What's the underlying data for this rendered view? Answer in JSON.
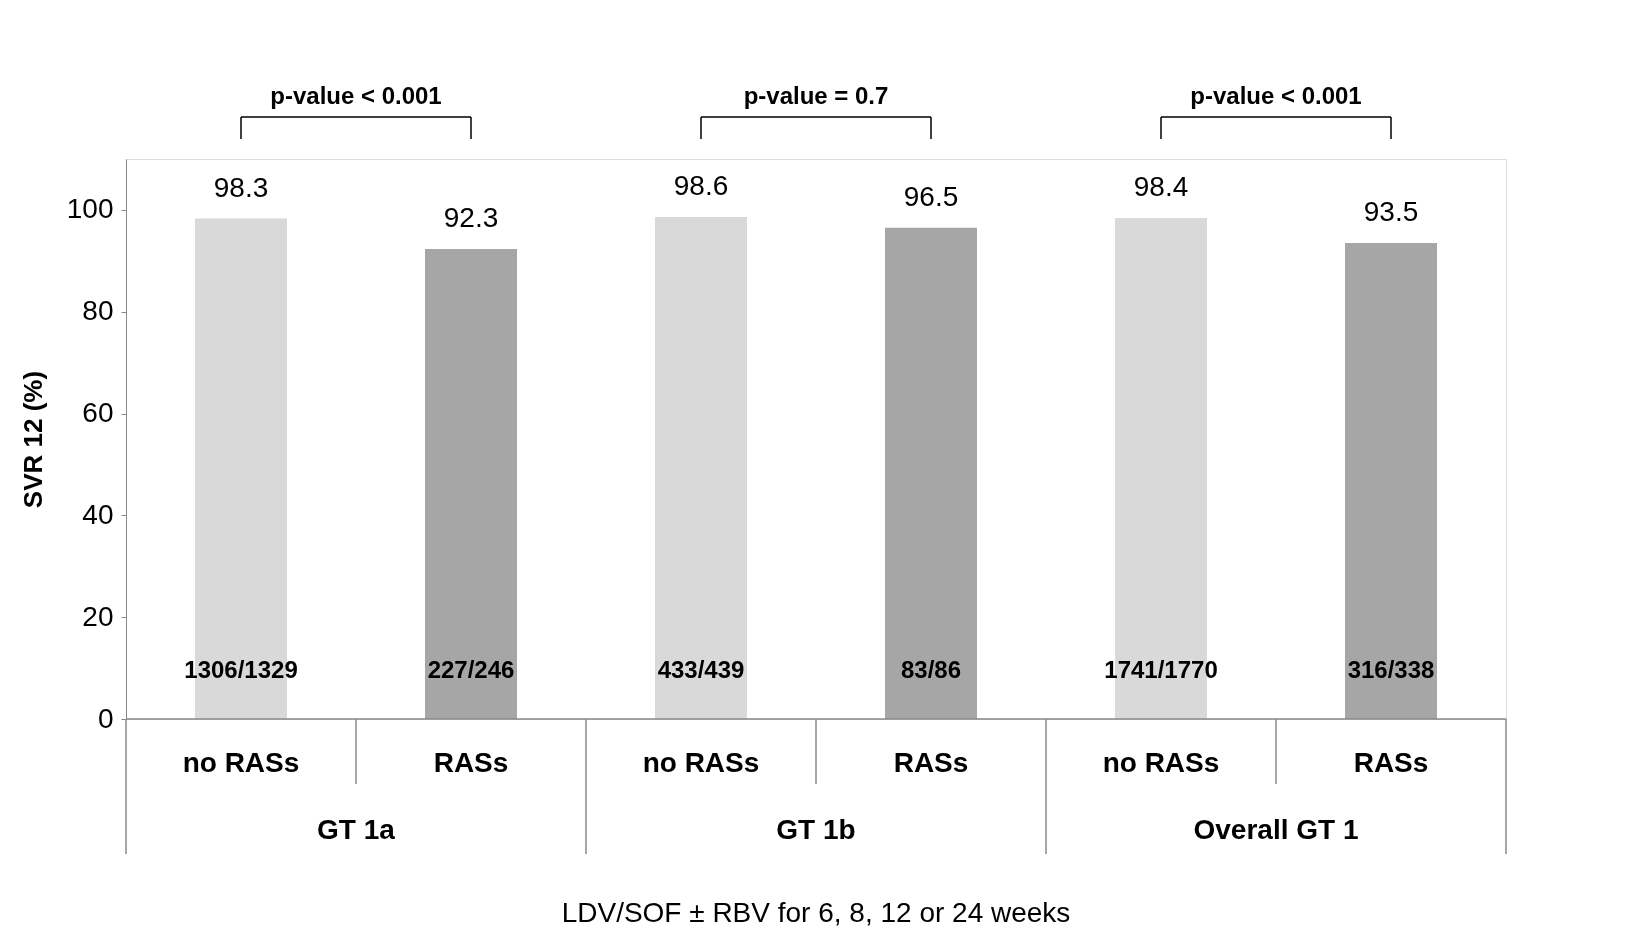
{
  "chart_data": {
    "type": "bar",
    "ylabel": "SVR 12 (%)",
    "xlabel": "LDV/SOF ± RBV for 6, 8, 12 or 24 weeks",
    "categories": [
      "no RASs",
      "RASs",
      "no RASs",
      "RASs",
      "no RASs",
      "RASs"
    ],
    "values": [
      98.3,
      92.3,
      98.6,
      96.5,
      98.4,
      93.5
    ],
    "colors": [
      "#d9d9d9",
      "#a6a6a6",
      "#d9d9d9",
      "#a6a6a6",
      "#d9d9d9",
      "#a6a6a6"
    ],
    "ylim": [
      0,
      110
    ],
    "yticks": [
      0,
      20,
      40,
      60,
      80,
      100
    ],
    "data_labels": true,
    "grid": false,
    "annotations": [
      "p-value < 0.001",
      "p-value = 0.7",
      "p-value < 0.001",
      "1306/1329",
      "227/246",
      "433/439",
      "83/86",
      "1741/1770",
      "316/338",
      "GT 1a",
      "GT 1b",
      "Overall GT 1"
    ]
  }
}
